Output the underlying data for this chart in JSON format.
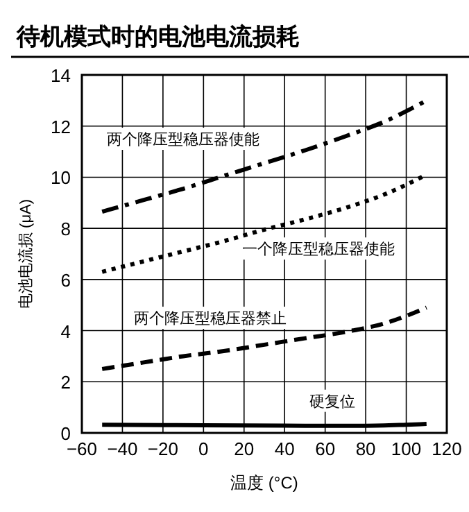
{
  "chart_data": {
    "type": "line",
    "title": "待机模式时的电池电流损耗",
    "xlabel": "温度 (°C)",
    "ylabel": "电池电流损 (μA)",
    "xlim": [
      -60,
      120
    ],
    "xticks": [
      -60,
      -40,
      -20,
      0,
      20,
      40,
      60,
      80,
      100,
      120
    ],
    "ylim": [
      0,
      14
    ],
    "yticks": [
      0,
      2,
      4,
      6,
      8,
      10,
      12,
      14
    ],
    "grid": true,
    "marker": "none",
    "series": [
      {
        "name": "两个降压型稳压器使能",
        "color": "#000000",
        "line_style": "dashdot",
        "x": [
          -50,
          -30,
          -10,
          10,
          30,
          50,
          70,
          90,
          110
        ],
        "values": [
          8.65,
          9.1,
          9.55,
          10.05,
          10.55,
          11.05,
          11.6,
          12.2,
          13.0
        ]
      },
      {
        "name": "一个降压型稳压器使能",
        "color": "#000000",
        "line_style": "dotted",
        "x": [
          -50,
          -30,
          -10,
          10,
          30,
          50,
          70,
          90,
          110
        ],
        "values": [
          6.3,
          6.7,
          7.1,
          7.5,
          7.95,
          8.35,
          8.8,
          9.35,
          10.1
        ]
      },
      {
        "name": "两个降压型稳压器禁止",
        "color": "#000000",
        "line_style": "dashed",
        "x": [
          -50,
          -30,
          -10,
          10,
          30,
          50,
          70,
          90,
          110
        ],
        "values": [
          2.5,
          2.75,
          3.0,
          3.2,
          3.45,
          3.7,
          3.95,
          4.3,
          4.9
        ]
      },
      {
        "name": "硬复位",
        "color": "#000000",
        "line_style": "solid",
        "x": [
          -50,
          0,
          50,
          80,
          100,
          110
        ],
        "values": [
          0.32,
          0.3,
          0.28,
          0.28,
          0.32,
          0.35
        ]
      }
    ]
  }
}
